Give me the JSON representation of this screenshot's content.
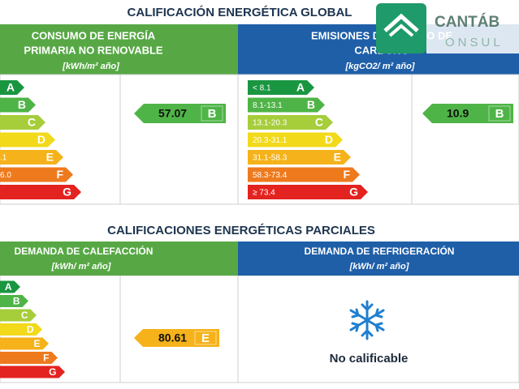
{
  "header": {
    "title": "CALIFICACIÓN ENERGÉTICA GLOBAL",
    "logo_name": "CANTÁB",
    "logo_sub": "ONSUL"
  },
  "global": {
    "consumo": {
      "title_lines": [
        "CONSUMO DE ENERGÍA",
        "PRIMARIA NO RENOVABLE"
      ],
      "unit": "[kWh/m² año]",
      "scale": [
        {
          "letter": "A"
        },
        {
          "letter": "B"
        },
        {
          "letter": "C"
        },
        {
          "letter": "D"
        },
        {
          "letter": "E",
          "range": ".1"
        },
        {
          "letter": "F",
          "range": "6.0"
        },
        {
          "letter": "G"
        }
      ],
      "value": 57.07,
      "rating": "B"
    },
    "emisiones": {
      "title_lines": [
        "EMISIONES DE DIÓXIDO DE",
        "CARBONO"
      ],
      "unit": "[kgCO2/ m² año]",
      "scale": [
        {
          "letter": "A",
          "range": "< 8.1"
        },
        {
          "letter": "B",
          "range": "8.1-13.1"
        },
        {
          "letter": "C",
          "range": "13.1-20.3"
        },
        {
          "letter": "D",
          "range": "20.3-31.1"
        },
        {
          "letter": "E",
          "range": "31.1-58.3"
        },
        {
          "letter": "F",
          "range": "58.3-73.4"
        },
        {
          "letter": "G",
          "range": "≥ 73.4"
        }
      ],
      "value": 10.9,
      "rating": "B"
    }
  },
  "parciales": {
    "title": "CALIFICACIONES ENERGÉTICAS PARCIALES",
    "calefaccion": {
      "title": "DEMANDA DE CALEFACCIÓN",
      "unit": "[kWh/ m² año]",
      "scale": [
        {
          "letter": "A"
        },
        {
          "letter": "B"
        },
        {
          "letter": "C"
        },
        {
          "letter": "D"
        },
        {
          "letter": "E"
        },
        {
          "letter": "F"
        },
        {
          "letter": "G"
        }
      ],
      "value": 80.61,
      "rating": "E"
    },
    "refrigeracion": {
      "title": "DEMANDA DE REFRIGERACIÓN",
      "unit": "[kWh/ m² año]",
      "note": "No calificable"
    }
  }
}
